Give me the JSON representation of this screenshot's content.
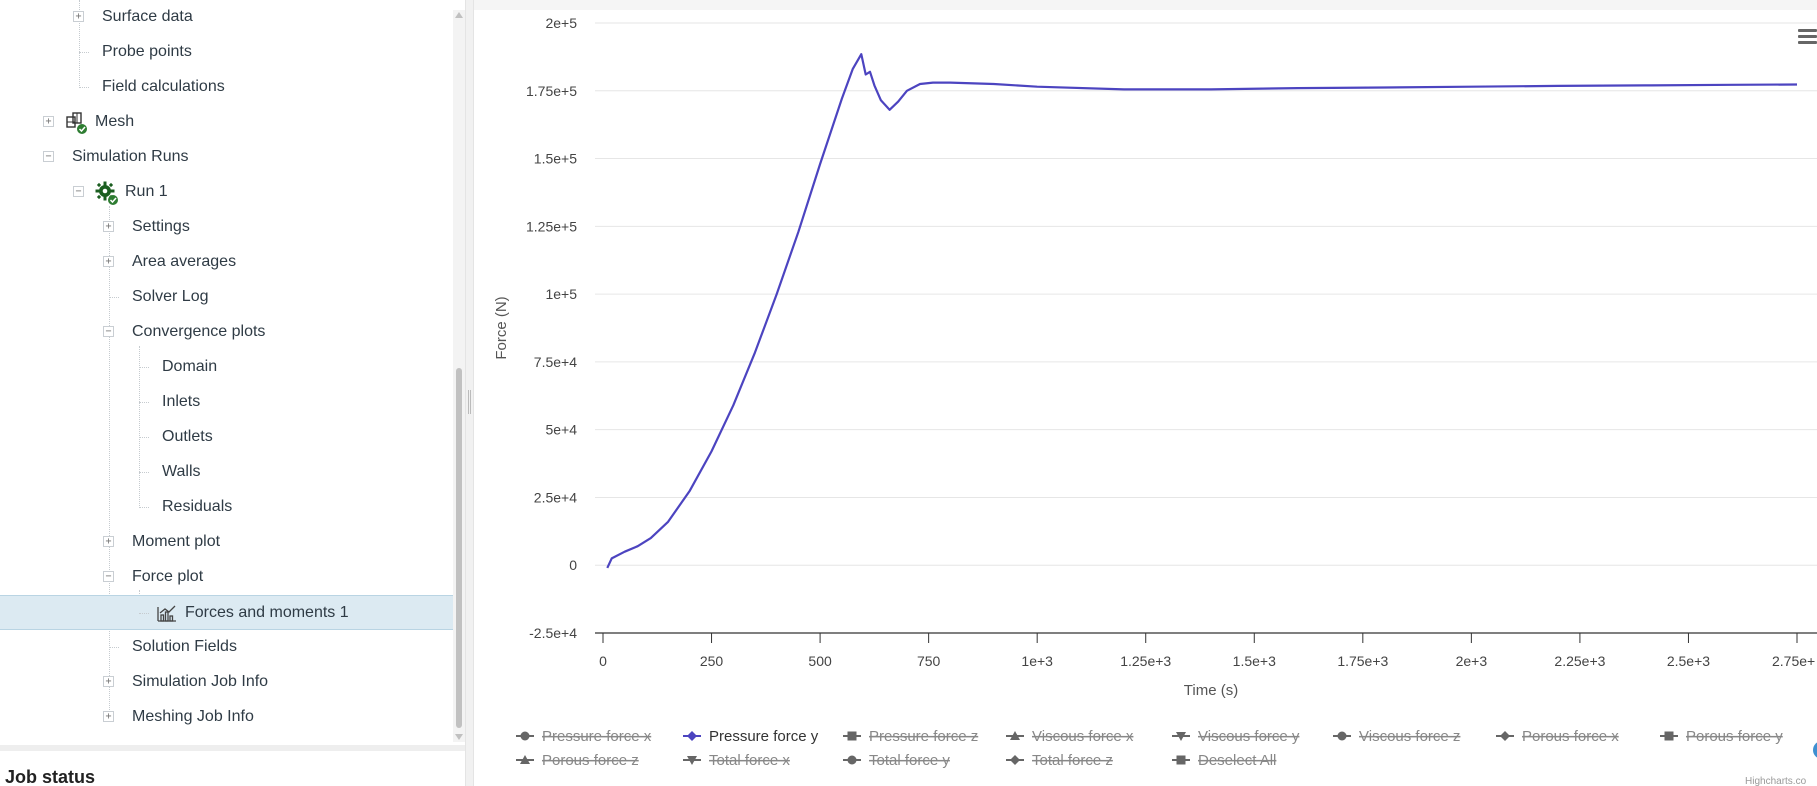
{
  "tree": {
    "items": [
      {
        "label": "Surface data",
        "level": 3,
        "expander": "+",
        "icon": ""
      },
      {
        "label": "Probe points",
        "level": 3,
        "expander": "",
        "icon": ""
      },
      {
        "label": "Field calculations",
        "level": 3,
        "expander": "",
        "icon": ""
      },
      {
        "label": "Mesh",
        "level": 2,
        "expander": "+",
        "icon": "mesh-icon"
      },
      {
        "label": "Simulation Runs",
        "level": 2,
        "expander": "−",
        "icon": ""
      },
      {
        "label": "Run 1",
        "level": 3,
        "expander": "−",
        "icon": "gear-icon"
      },
      {
        "label": "Settings",
        "level": 4,
        "expander": "+",
        "icon": ""
      },
      {
        "label": "Area averages",
        "level": 4,
        "expander": "+",
        "icon": ""
      },
      {
        "label": "Solver Log",
        "level": 4,
        "expander": "",
        "icon": ""
      },
      {
        "label": "Convergence plots",
        "level": 4,
        "expander": "−",
        "icon": ""
      },
      {
        "label": "Domain",
        "level": 5,
        "expander": "",
        "icon": ""
      },
      {
        "label": "Inlets",
        "level": 5,
        "expander": "",
        "icon": ""
      },
      {
        "label": "Outlets",
        "level": 5,
        "expander": "",
        "icon": ""
      },
      {
        "label": "Walls",
        "level": 5,
        "expander": "",
        "icon": ""
      },
      {
        "label": "Residuals",
        "level": 5,
        "expander": "",
        "icon": ""
      },
      {
        "label": "Moment plot",
        "level": 4,
        "expander": "+",
        "icon": ""
      },
      {
        "label": "Force plot",
        "level": 4,
        "expander": "−",
        "icon": ""
      },
      {
        "label": "Forces and moments 1",
        "level": 5,
        "expander": "",
        "icon": "chart-icon",
        "selected": true
      },
      {
        "label": "Solution Fields",
        "level": 4,
        "expander": "",
        "icon": ""
      },
      {
        "label": "Simulation Job Info",
        "level": 4,
        "expander": "+",
        "icon": ""
      },
      {
        "label": "Meshing Job Info",
        "level": 4,
        "expander": "+",
        "icon": ""
      }
    ]
  },
  "job_status": {
    "title": "Job status"
  },
  "colors": {
    "series": "#4c44c0",
    "status_green": "#2e7d32",
    "icon_dark": "#1b5e20",
    "selection": "#dceaf2"
  },
  "chart_data": {
    "type": "line",
    "title": "",
    "xlabel": "Time (s)",
    "ylabel": "Force (N)",
    "xlim": [
      0,
      2750
    ],
    "ylim": [
      -25000,
      200000
    ],
    "x_ticks": [
      "0",
      "250",
      "500",
      "750",
      "1e+3",
      "1.25e+3",
      "1.5e+3",
      "1.75e+3",
      "2e+3",
      "2.25e+3",
      "2.5e+3",
      "2.75e+"
    ],
    "x_tick_values": [
      0,
      250,
      500,
      750,
      1000,
      1250,
      1500,
      1750,
      2000,
      2250,
      2500,
      2750
    ],
    "y_ticks": [
      "2e+5",
      "1.75e+5",
      "1.5e+5",
      "1.25e+5",
      "1e+5",
      "7.5e+4",
      "5e+4",
      "2.5e+4",
      "0",
      "-2.5e+4"
    ],
    "y_tick_values": [
      200000,
      175000,
      150000,
      125000,
      100000,
      75000,
      50000,
      25000,
      0,
      -25000
    ],
    "grid": true,
    "series": [
      {
        "name": "Pressure force y",
        "color": "#4c44c0",
        "visible": true,
        "x": [
          10,
          20,
          50,
          80,
          110,
          150,
          200,
          250,
          300,
          350,
          400,
          450,
          500,
          550,
          575,
          595,
          605,
          615,
          625,
          640,
          660,
          680,
          700,
          730,
          760,
          800,
          900,
          1000,
          1200,
          1400,
          1600,
          1800,
          2000,
          2200,
          2400,
          2600,
          2750
        ],
        "y": [
          -1000,
          2500,
          5000,
          7000,
          10000,
          16000,
          27500,
          42000,
          59000,
          78500,
          100000,
          123000,
          148000,
          172000,
          183000,
          188500,
          181000,
          182000,
          177000,
          171500,
          168000,
          171000,
          175000,
          177500,
          178000,
          178000,
          177500,
          176500,
          175500,
          175500,
          176000,
          176200,
          176500,
          176800,
          177000,
          177200,
          177300
        ]
      }
    ],
    "legend": {
      "placement": "bottom",
      "items": [
        {
          "name": "Pressure force x",
          "symbol": "circle",
          "visible": false
        },
        {
          "name": "Pressure force y",
          "symbol": "diamond",
          "visible": true
        },
        {
          "name": "Pressure force z",
          "symbol": "square",
          "visible": false
        },
        {
          "name": "Viscous force x",
          "symbol": "triangle",
          "visible": false
        },
        {
          "name": "Viscous force y",
          "symbol": "triangle-down",
          "visible": false
        },
        {
          "name": "Viscous force z",
          "symbol": "circle",
          "visible": false
        },
        {
          "name": "Porous force x",
          "symbol": "diamond",
          "visible": false
        },
        {
          "name": "Porous force y",
          "symbol": "square",
          "visible": false
        },
        {
          "name": "Porous force z",
          "symbol": "triangle",
          "visible": false
        },
        {
          "name": "Total force x",
          "symbol": "triangle-down",
          "visible": false
        },
        {
          "name": "Total force y",
          "symbol": "circle",
          "visible": false
        },
        {
          "name": "Total force z",
          "symbol": "diamond",
          "visible": false
        },
        {
          "name": "Deselect All",
          "symbol": "square",
          "visible": false
        }
      ]
    },
    "credit": "Highcharts.co"
  }
}
